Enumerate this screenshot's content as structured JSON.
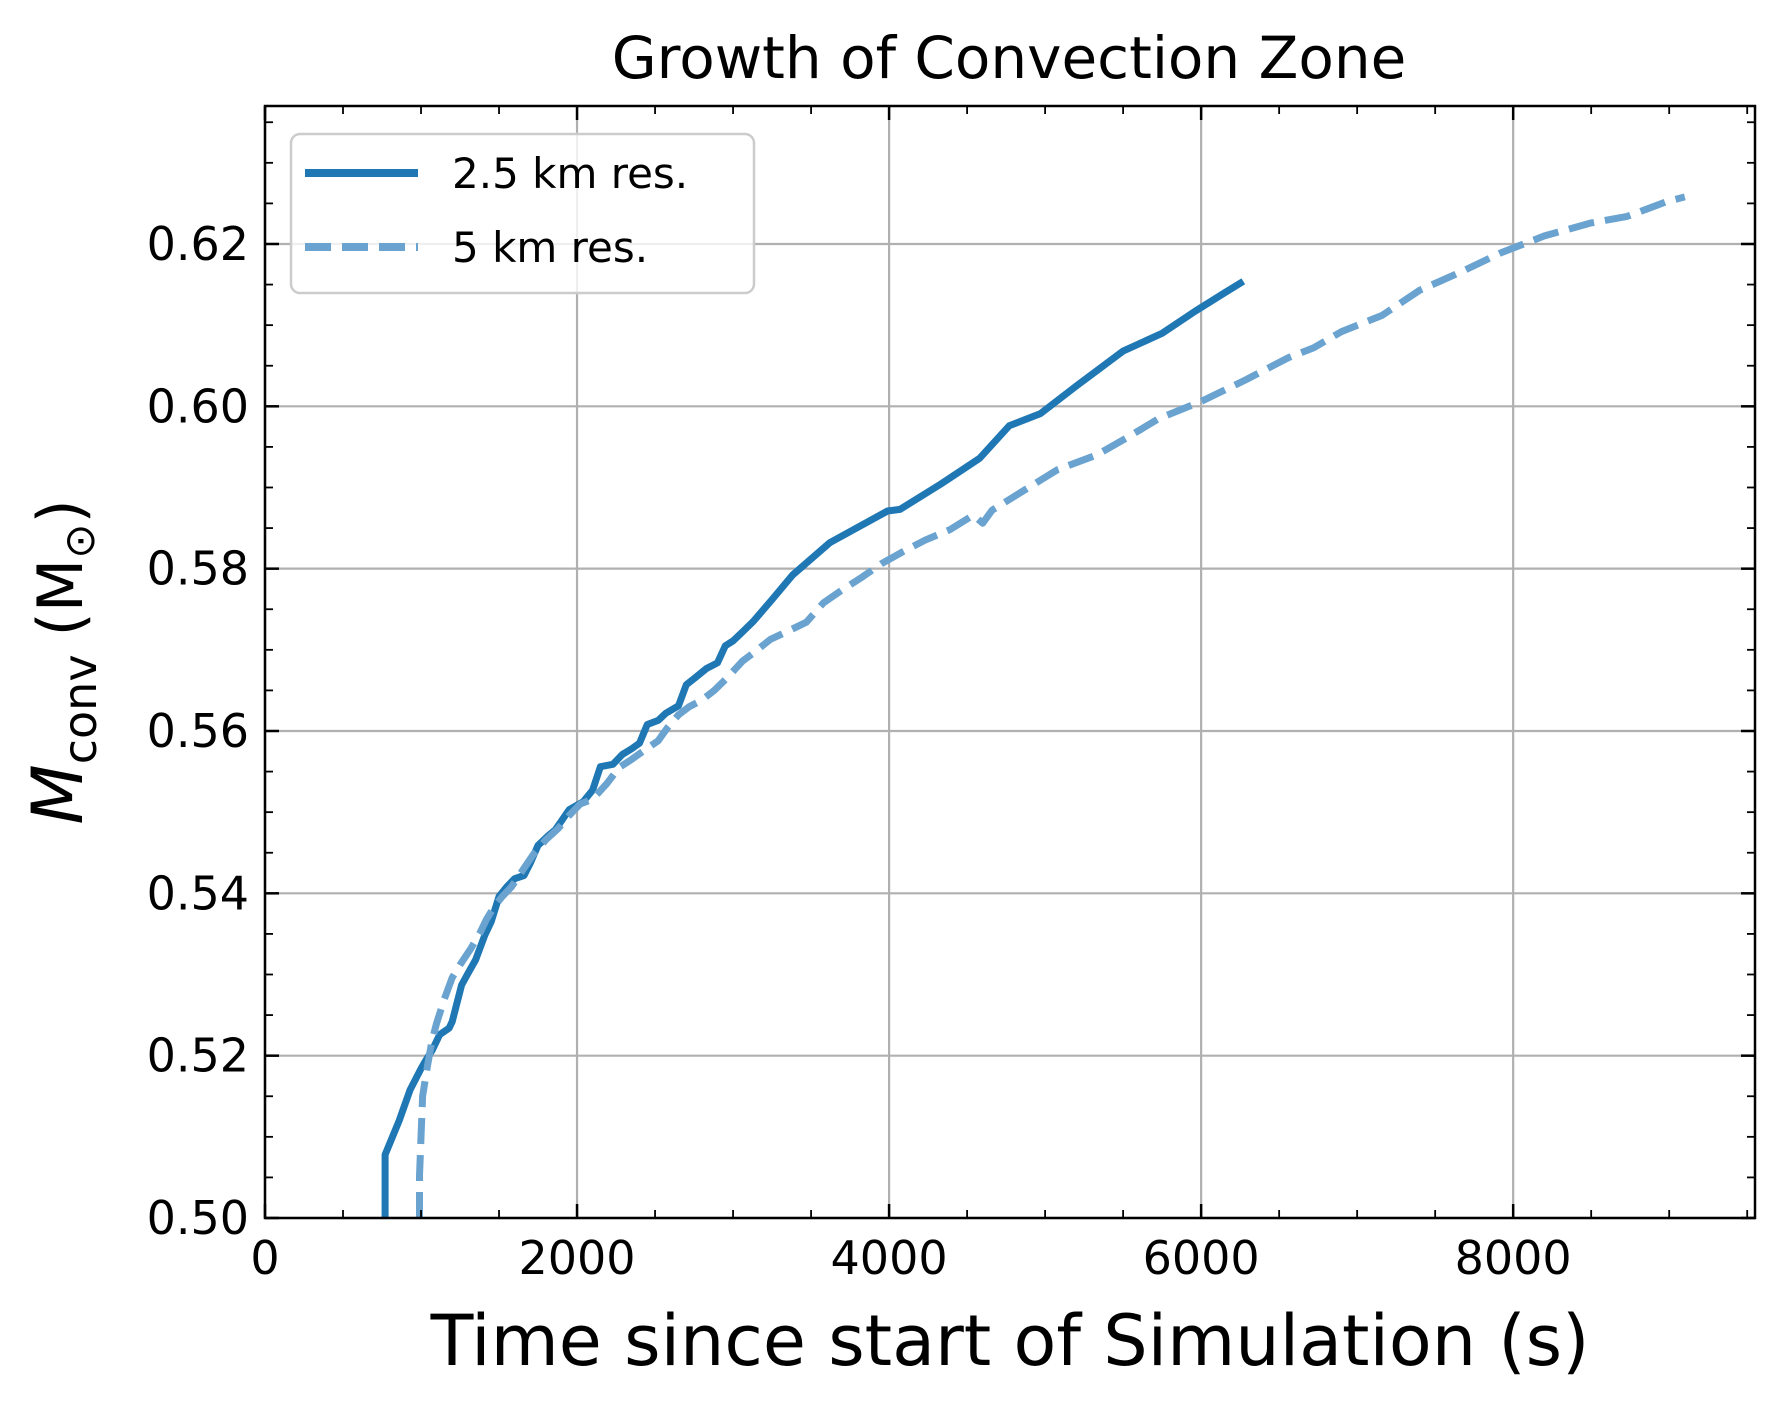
{
  "chart_data": {
    "type": "line",
    "title": "Growth of Convection Zone",
    "xlabel": "Time since start of Simulation (s)",
    "ylabel_main": "M",
    "ylabel_sub": "conv",
    "ylabel_unit": "(M",
    "ylabel_unit_sub": "⊙",
    "ylabel_close": ")",
    "xlim": [
      0,
      9550
    ],
    "ylim": [
      0.5,
      0.637
    ],
    "xticks": [
      0,
      2000,
      4000,
      6000,
      8000
    ],
    "xtick_labels": [
      "0",
      "2000",
      "4000",
      "6000",
      "8000"
    ],
    "yticks": [
      0.5,
      0.52,
      0.54,
      0.56,
      0.58,
      0.6,
      0.62
    ],
    "ytick_labels": [
      "0.50",
      "0.52",
      "0.54",
      "0.56",
      "0.58",
      "0.60",
      "0.62"
    ],
    "grid": true,
    "legend_location": "top-left",
    "series": [
      {
        "name": "2.5 km res.",
        "color": "#1f77b4",
        "style": "solid",
        "x": [
          770,
          770,
          860,
          930,
          1000,
          1030,
          1070,
          1120,
          1180,
          1200,
          1260,
          1300,
          1350,
          1410,
          1450,
          1500,
          1550,
          1600,
          1660,
          1700,
          1750,
          1810,
          1860,
          1950,
          2040,
          2100,
          2150,
          2230,
          2290,
          2350,
          2400,
          2450,
          2520,
          2570,
          2650,
          2700,
          2760,
          2830,
          2900,
          2950,
          3000,
          3060,
          3130,
          3250,
          3380,
          3620,
          3820,
          3990,
          4070,
          4330,
          4580,
          4770,
          4970,
          5200,
          5500,
          5750,
          5960,
          6160,
          6270
        ],
        "y": [
          0.5,
          0.5078,
          0.512,
          0.5158,
          0.5184,
          0.5194,
          0.5206,
          0.5226,
          0.5234,
          0.5242,
          0.5287,
          0.5301,
          0.5318,
          0.5349,
          0.5365,
          0.5396,
          0.5408,
          0.5418,
          0.5422,
          0.5437,
          0.5459,
          0.547,
          0.5478,
          0.5503,
          0.5513,
          0.5527,
          0.5556,
          0.5559,
          0.5571,
          0.5578,
          0.5585,
          0.5608,
          0.5613,
          0.5622,
          0.5631,
          0.5657,
          0.5666,
          0.5677,
          0.5684,
          0.5705,
          0.5711,
          0.5722,
          0.5735,
          0.5762,
          0.5792,
          0.5832,
          0.5853,
          0.5871,
          0.5873,
          0.5904,
          0.5936,
          0.5976,
          0.5991,
          0.6025,
          0.6068,
          0.609,
          0.6117,
          0.6141,
          0.6154
        ]
      },
      {
        "name": "5 km res.",
        "color": "#6aa3d0",
        "style": "dashed",
        "x": [
          990,
          990,
          1010,
          1040,
          1070,
          1100,
          1150,
          1200,
          1250,
          1320,
          1380,
          1420,
          1470,
          1520,
          1580,
          1650,
          1720,
          1800,
          1880,
          1950,
          2020,
          2100,
          2190,
          2270,
          2350,
          2430,
          2520,
          2580,
          2650,
          2720,
          2800,
          2880,
          2960,
          3060,
          3130,
          3240,
          3340,
          3470,
          3580,
          3700,
          3830,
          3950,
          4080,
          4230,
          4390,
          4540,
          4600,
          4660,
          4870,
          5080,
          5330,
          5530,
          5730,
          6000,
          6290,
          6560,
          6720,
          6900,
          7160,
          7400,
          7670,
          7920,
          8200,
          8500,
          8730,
          8980,
          9100
        ],
        "y": [
          0.5,
          0.5052,
          0.515,
          0.5186,
          0.5218,
          0.524,
          0.527,
          0.5296,
          0.5312,
          0.5332,
          0.5352,
          0.5368,
          0.5384,
          0.5396,
          0.5408,
          0.5428,
          0.5448,
          0.5466,
          0.548,
          0.5496,
          0.551,
          0.5516,
          0.5535,
          0.5555,
          0.5565,
          0.5576,
          0.5588,
          0.5604,
          0.562,
          0.563,
          0.5638,
          0.565,
          0.5665,
          0.5686,
          0.5696,
          0.5713,
          0.5722,
          0.5734,
          0.5758,
          0.5774,
          0.579,
          0.5806,
          0.582,
          0.5835,
          0.5848,
          0.5866,
          0.5856,
          0.5872,
          0.5897,
          0.5922,
          0.594,
          0.5962,
          0.5985,
          0.6006,
          0.6033,
          0.606,
          0.6072,
          0.6092,
          0.6112,
          0.6143,
          0.6166,
          0.6189,
          0.621,
          0.6226,
          0.6234,
          0.6252,
          0.6258
        ]
      }
    ]
  }
}
